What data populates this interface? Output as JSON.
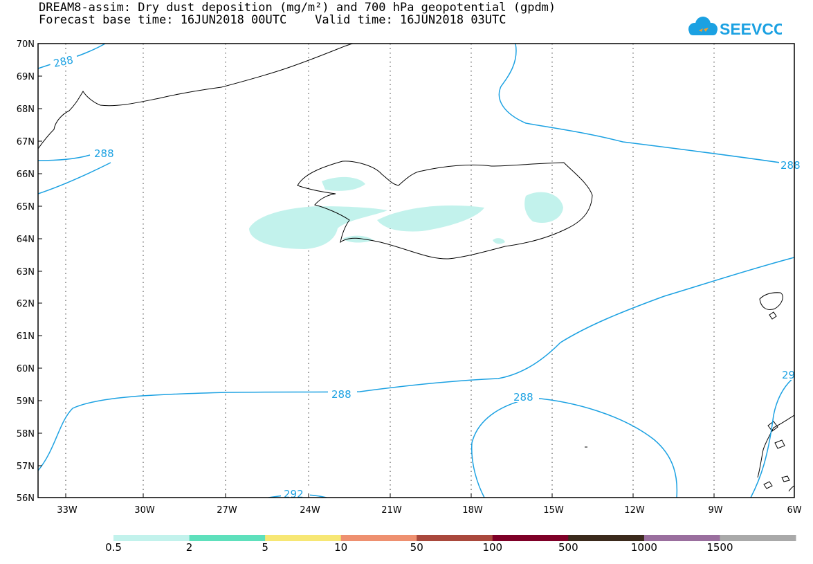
{
  "header": {
    "title_line1": "DREAM8-assim: Dry dust deposition (mg/m²) and 700 hPa geopotential (gpdm)",
    "title_line2": "Forecast base time: 16JUN2018 00UTC    Valid time: 16JUN2018 03UTC",
    "logo_text": "SEEVCCC"
  },
  "map": {
    "lat_labels": [
      "70N",
      "69N",
      "68N",
      "67N",
      "66N",
      "65N",
      "64N",
      "63N",
      "62N",
      "61N",
      "60N",
      "59N",
      "58N",
      "57N",
      "56N"
    ],
    "lon_labels": [
      "33W",
      "30W",
      "27W",
      "24W",
      "21W",
      "18W",
      "15W",
      "12W",
      "9W",
      "6W"
    ],
    "contour_labels": [
      "288",
      "288",
      "288",
      "288",
      "292",
      "288",
      "29"
    ],
    "colors": {
      "contour": "#1ba1e2",
      "dust_low": "#c2f2ec",
      "coast": "#000000"
    }
  },
  "colorbar": {
    "labels": [
      "0.5",
      "2",
      "5",
      "10",
      "50",
      "100",
      "500",
      "1000",
      "1500"
    ],
    "colors": [
      "#c2f2ec",
      "#5ee0bc",
      "#f7e774",
      "#ee9070",
      "#a9483c",
      "#7e0027",
      "#3b2a1c",
      "#9a6f9e",
      "#a9a9a9"
    ]
  }
}
